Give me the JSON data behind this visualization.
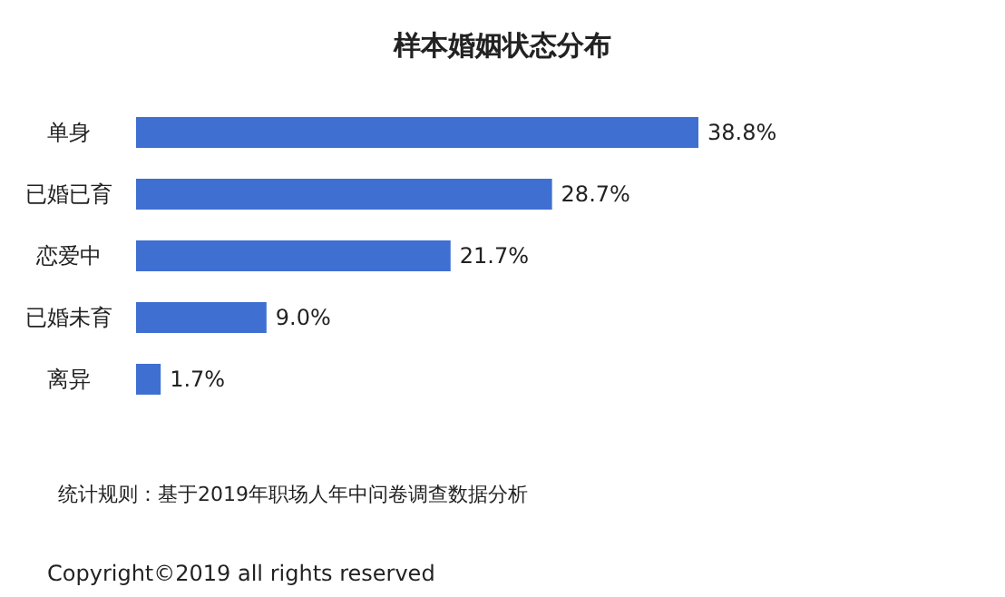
{
  "chart_data": {
    "type": "bar",
    "orientation": "horizontal",
    "title": "样本婚姻状态分布",
    "categories": [
      "单身",
      "已婚已育",
      "恋爱中",
      "已婚未育",
      "离异"
    ],
    "values": [
      38.8,
      28.7,
      21.7,
      9.0,
      1.7
    ],
    "value_labels": [
      "38.8%",
      "28.7%",
      "21.7%",
      "9.0%",
      "1.7%"
    ],
    "color": "#3f6fd1",
    "annotations": [
      "统计规则：基于2019年职场人年中问卷调查数据分析",
      "Copyright©2019 all rights reserved"
    ]
  }
}
